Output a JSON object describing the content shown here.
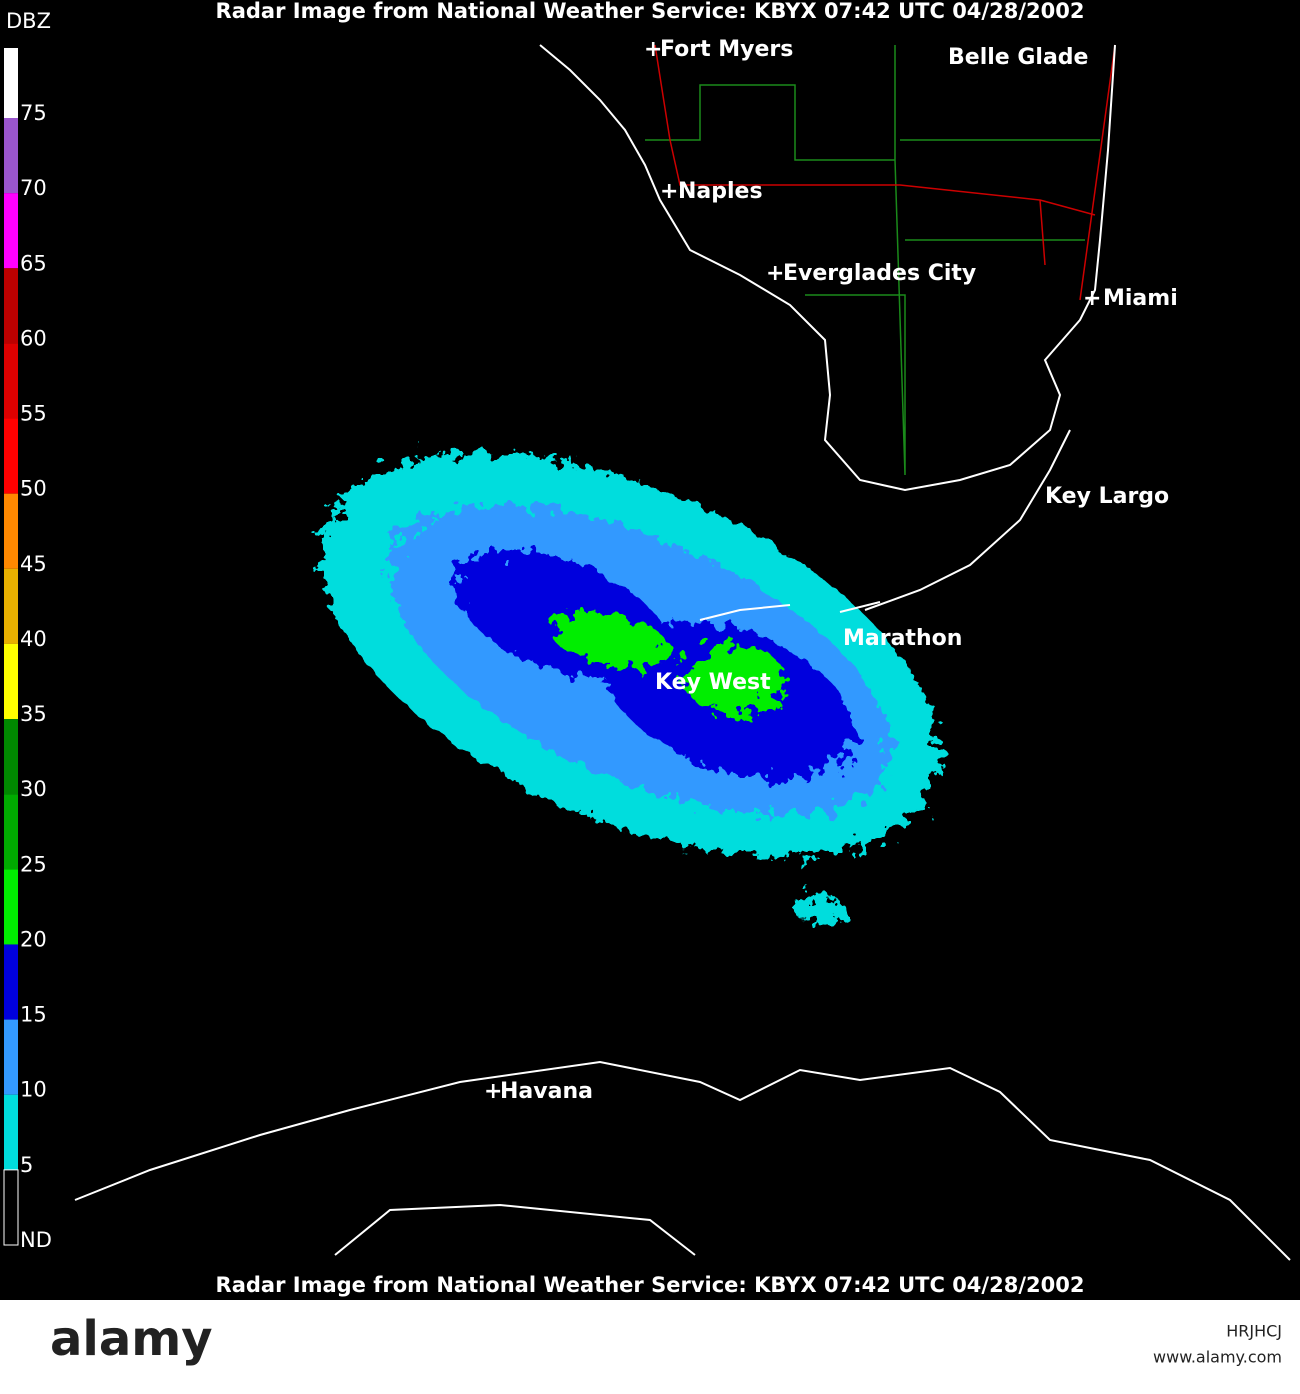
{
  "header": {
    "title": "Radar Image from National Weather Service: KBYX   07:42 UTC  04/28/2002"
  },
  "footer": {
    "title": "Radar Image from National Weather Service: KBYX   07:42 UTC  04/28/2002"
  },
  "legend": {
    "unit": "DBZ",
    "levels": [
      {
        "label": "75",
        "color": "#ffffff"
      },
      {
        "label": "70",
        "color": "#9955cc"
      },
      {
        "label": "65",
        "color": "#ff00ff"
      },
      {
        "label": "60",
        "color": "#bb0000"
      },
      {
        "label": "55",
        "color": "#dd0000"
      },
      {
        "label": "50",
        "color": "#ff0000"
      },
      {
        "label": "45",
        "color": "#ff8800"
      },
      {
        "label": "40",
        "color": "#e8b000"
      },
      {
        "label": "35",
        "color": "#ffff00"
      },
      {
        "label": "30",
        "color": "#008800"
      },
      {
        "label": "25",
        "color": "#00aa00"
      },
      {
        "label": "20",
        "color": "#00ee00"
      },
      {
        "label": "15",
        "color": "#0000dd"
      },
      {
        "label": "10",
        "color": "#3399ff"
      },
      {
        "label": "5",
        "color": "#00dddd"
      },
      {
        "label": "ND",
        "color": "#000000"
      }
    ]
  },
  "places": [
    "Fort Myers",
    "Belle Glade",
    "Naples",
    "Everglades City",
    "Miami",
    "Key Largo",
    "Marathon",
    "Key West",
    "Havana"
  ],
  "watermark": {
    "logo": "alamy",
    "id": "HRJHCJ",
    "url": "www.alamy.com"
  }
}
